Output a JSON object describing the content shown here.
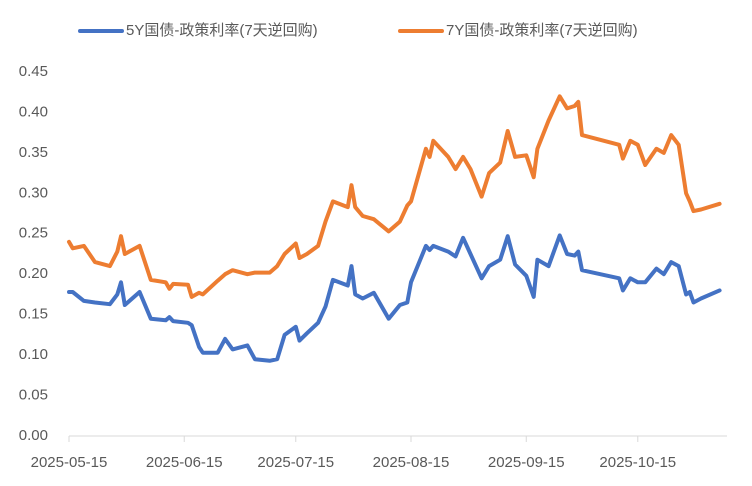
{
  "chart_data": {
    "type": "line",
    "x": [
      "2025-05-15",
      "2025-05-16",
      "2025-05-19",
      "2025-05-22",
      "2025-05-26",
      "2025-05-28",
      "2025-05-29",
      "2025-05-30",
      "2025-06-03",
      "2025-06-06",
      "2025-06-10",
      "2025-06-11",
      "2025-06-12",
      "2025-06-16",
      "2025-06-17",
      "2025-06-19",
      "2025-06-20",
      "2025-06-24",
      "2025-06-26",
      "2025-06-28",
      "2025-07-02",
      "2025-07-04",
      "2025-07-08",
      "2025-07-10",
      "2025-07-12",
      "2025-07-15",
      "2025-07-16",
      "2025-07-18",
      "2025-07-21",
      "2025-07-23",
      "2025-07-25",
      "2025-07-29",
      "2025-07-30",
      "2025-07-31",
      "2025-08-02",
      "2025-08-05",
      "2025-08-09",
      "2025-08-12",
      "2025-08-14",
      "2025-08-15",
      "2025-08-19",
      "2025-08-20",
      "2025-08-21",
      "2025-08-25",
      "2025-08-27",
      "2025-08-29",
      "2025-08-31",
      "2025-09-03",
      "2025-09-05",
      "2025-09-08",
      "2025-09-10",
      "2025-09-12",
      "2025-09-15",
      "2025-09-17",
      "2025-09-18",
      "2025-09-21",
      "2025-09-24",
      "2025-09-26",
      "2025-09-28",
      "2025-09-29",
      "2025-09-30",
      "2025-10-10",
      "2025-10-11",
      "2025-10-13",
      "2025-10-15",
      "2025-10-17",
      "2025-10-20",
      "2025-10-22",
      "2025-10-24",
      "2025-10-26",
      "2025-10-28",
      "2025-10-29",
      "2025-10-30",
      "2025-11-01",
      "2025-11-06"
    ],
    "series": [
      {
        "name": "5Y国债-政策利率(7天逆回购)",
        "color": "#4472c4",
        "values": [
          0.178,
          0.178,
          0.167,
          0.165,
          0.163,
          0.175,
          0.19,
          0.162,
          0.178,
          0.145,
          0.143,
          0.147,
          0.142,
          0.14,
          0.137,
          0.11,
          0.103,
          0.103,
          0.12,
          0.107,
          0.112,
          0.095,
          0.093,
          0.095,
          0.125,
          0.135,
          0.118,
          0.127,
          0.14,
          0.16,
          0.193,
          0.186,
          0.21,
          0.175,
          0.17,
          0.177,
          0.145,
          0.162,
          0.165,
          0.19,
          0.235,
          0.23,
          0.235,
          0.228,
          0.222,
          0.245,
          0.225,
          0.195,
          0.21,
          0.218,
          0.247,
          0.212,
          0.198,
          0.172,
          0.218,
          0.21,
          0.248,
          0.225,
          0.223,
          0.228,
          0.205,
          0.195,
          0.18,
          0.195,
          0.19,
          0.19,
          0.207,
          0.2,
          0.215,
          0.21,
          0.175,
          0.178,
          0.165,
          0.17,
          0.18
        ]
      },
      {
        "name": "7Y国债-政策利率(7天逆回购)",
        "color": "#ed7d31",
        "values": [
          0.24,
          0.232,
          0.235,
          0.215,
          0.21,
          0.228,
          0.247,
          0.225,
          0.235,
          0.193,
          0.19,
          0.182,
          0.188,
          0.187,
          0.172,
          0.177,
          0.175,
          0.192,
          0.2,
          0.205,
          0.2,
          0.202,
          0.202,
          0.21,
          0.225,
          0.238,
          0.22,
          0.225,
          0.235,
          0.265,
          0.29,
          0.283,
          0.31,
          0.283,
          0.272,
          0.268,
          0.253,
          0.265,
          0.285,
          0.29,
          0.355,
          0.345,
          0.365,
          0.345,
          0.33,
          0.345,
          0.33,
          0.296,
          0.325,
          0.338,
          0.377,
          0.345,
          0.347,
          0.32,
          0.355,
          0.39,
          0.42,
          0.405,
          0.408,
          0.413,
          0.372,
          0.36,
          0.343,
          0.365,
          0.36,
          0.335,
          0.355,
          0.35,
          0.372,
          0.36,
          0.3,
          0.29,
          0.278,
          0.28,
          0.287
        ]
      }
    ],
    "xlim": [
      "2025-05-15",
      "2025-11-08"
    ],
    "xticks": [
      "2025-05-15",
      "2025-06-15",
      "2025-07-15",
      "2025-08-15",
      "2025-09-15",
      "2025-10-15"
    ],
    "ylim": [
      0,
      0.45
    ],
    "yticks": [
      {
        "value": 0,
        "label": "0.00"
      },
      {
        "value": 0.05,
        "label": "0.05"
      },
      {
        "value": 0.1,
        "label": "0.10"
      },
      {
        "value": 0.15,
        "label": "0.15"
      },
      {
        "value": 0.2,
        "label": "0.20"
      },
      {
        "value": 0.25,
        "label": "0.25"
      },
      {
        "value": 0.3,
        "label": "0.30"
      },
      {
        "value": 0.35,
        "label": "0.35"
      },
      {
        "value": 0.4,
        "label": "0.40"
      },
      {
        "value": 0.45,
        "label": "0.45"
      }
    ],
    "legend": "top"
  }
}
